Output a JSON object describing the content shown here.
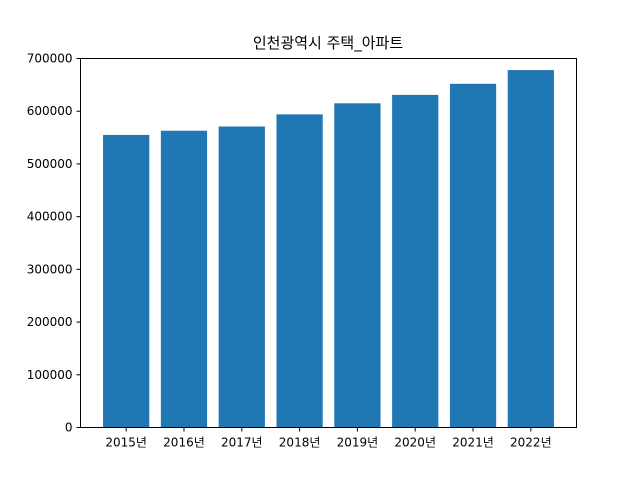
{
  "chart_data": {
    "type": "bar",
    "title": "인천광역시 주택_아파트",
    "xlabel": "",
    "ylabel": "",
    "categories": [
      "2015년",
      "2016년",
      "2017년",
      "2018년",
      "2019년",
      "2020년",
      "2021년",
      "2022년"
    ],
    "values": [
      555000,
      563000,
      571000,
      594000,
      615000,
      631000,
      652000,
      678000
    ],
    "ylim": [
      0,
      700000
    ],
    "yticks": [
      0,
      100000,
      200000,
      300000,
      400000,
      500000,
      600000,
      700000
    ],
    "ytick_labels": [
      "0",
      "100000",
      "200000",
      "300000",
      "400000",
      "500000",
      "600000",
      "700000"
    ],
    "grid": false,
    "colors": {
      "bar": "#1f77b4",
      "axes": "#000000",
      "background": "#ffffff"
    }
  }
}
